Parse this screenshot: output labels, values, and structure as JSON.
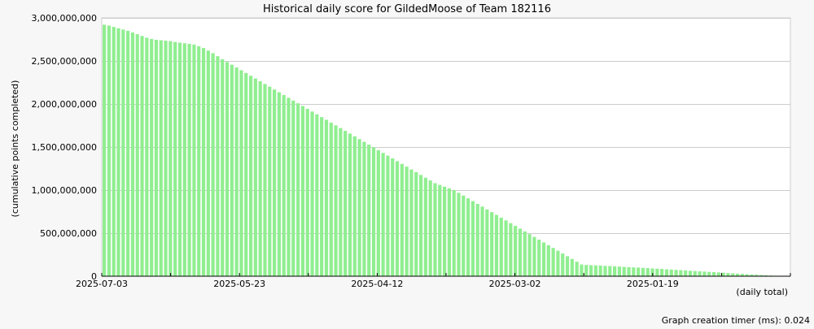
{
  "chart_data": {
    "type": "bar",
    "title": "Historical daily score for GildedMoose of Team 182116",
    "ylabel": "(cumulative points completed)",
    "xlabel": "(daily total)",
    "ylim": [
      0,
      3000000000
    ],
    "yticks": [
      0,
      500000000,
      1000000000,
      1500000000,
      2000000000,
      2500000000,
      3000000000
    ],
    "ytick_labels": [
      "0",
      "500,000,000",
      "1,000,000,000",
      "1,500,000,000",
      "2,000,000,000",
      "2,500,000,000",
      "3,000,000,000"
    ],
    "x_tick_labels": [
      "2025-07-03",
      "2025-05-23",
      "2025-04-12",
      "2025-03-02",
      "2025-01-19"
    ],
    "x_order": "descending dates, 2025-07-03 at left, one bar per day",
    "grid": "horizontal",
    "bar_color": "#90ee90",
    "series": [
      {
        "values": [
          2920000000,
          2910000000,
          2895000000,
          2880000000,
          2865000000,
          2850000000,
          2830000000,
          2810000000,
          2790000000,
          2770000000,
          2755000000,
          2745000000,
          2740000000,
          2735000000,
          2730000000,
          2720000000,
          2712000000,
          2705000000,
          2698000000,
          2690000000,
          2670000000,
          2650000000,
          2620000000,
          2590000000,
          2555000000,
          2520000000,
          2488000000,
          2456000000,
          2424000000,
          2392000000,
          2360000000,
          2328000000,
          2296000000,
          2264000000,
          2232000000,
          2200000000,
          2168000000,
          2136000000,
          2104000000,
          2072000000,
          2040000000,
          2008000000,
          1976000000,
          1944000000,
          1912000000,
          1880000000,
          1848000000,
          1816000000,
          1784000000,
          1752000000,
          1720000000,
          1688000000,
          1656000000,
          1624000000,
          1592000000,
          1560000000,
          1528000000,
          1496000000,
          1464000000,
          1432000000,
          1400000000,
          1368000000,
          1336000000,
          1304000000,
          1272000000,
          1240000000,
          1208000000,
          1176000000,
          1144000000,
          1112000000,
          1080000000,
          1060000000,
          1040000000,
          1020000000,
          1000000000,
          968000000,
          936000000,
          904000000,
          872000000,
          840000000,
          808000000,
          776000000,
          744000000,
          712000000,
          680000000,
          648000000,
          616000000,
          584000000,
          552000000,
          520000000,
          488000000,
          456000000,
          424000000,
          392000000,
          360000000,
          328000000,
          296000000,
          264000000,
          232000000,
          200000000,
          168000000,
          136000000,
          130000000,
          128000000,
          126000000,
          124000000,
          120000000,
          118000000,
          115000000,
          112000000,
          108000000,
          105000000,
          102000000,
          100000000,
          97000000,
          94000000,
          90000000,
          87000000,
          84000000,
          80000000,
          77000000,
          74000000,
          70000000,
          67000000,
          63000000,
          60000000,
          57000000,
          54000000,
          50000000,
          47000000,
          44000000,
          40000000,
          37000000,
          33000000,
          30000000,
          27000000,
          23000000,
          20000000,
          17000000,
          13000000,
          10000000,
          7000000,
          4000000,
          2000000
        ]
      }
    ]
  },
  "footer": {
    "timer_text": "Graph creation timer (ms): 0.024"
  }
}
